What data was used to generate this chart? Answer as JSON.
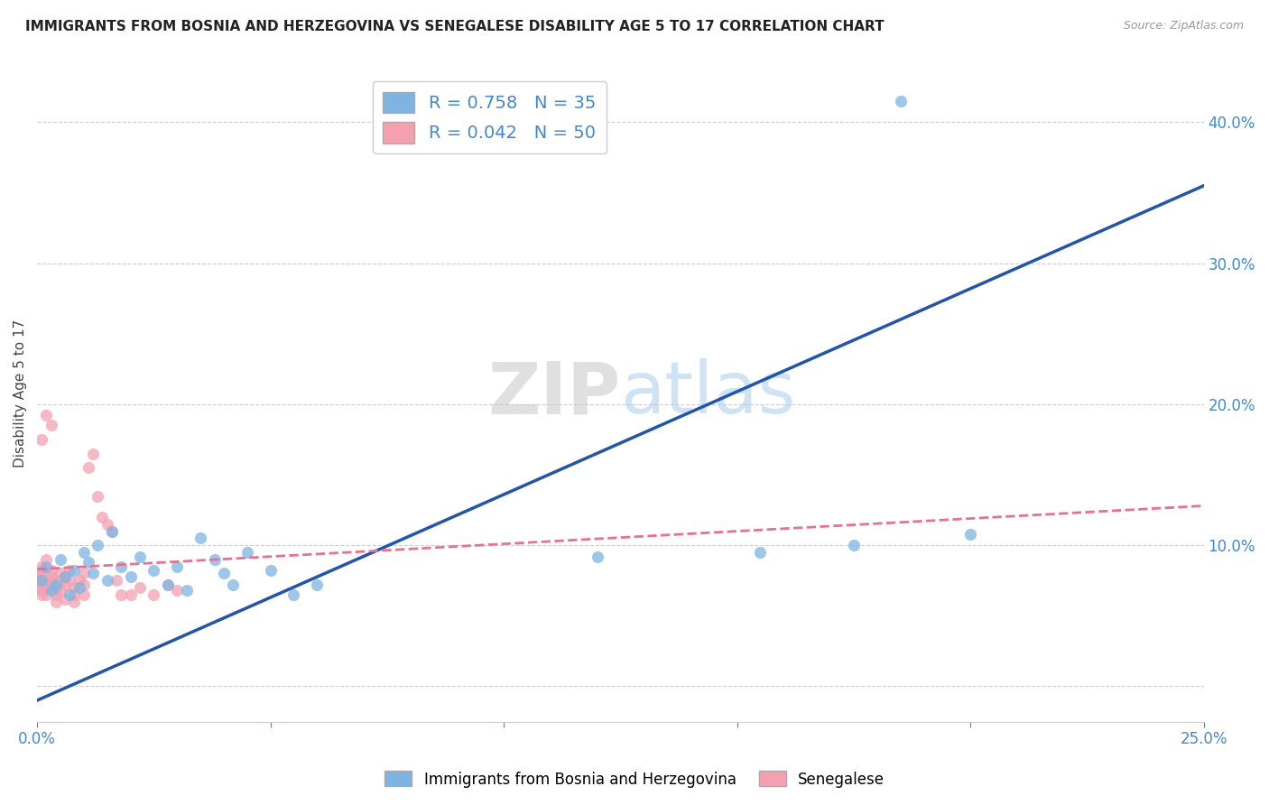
{
  "title": "IMMIGRANTS FROM BOSNIA AND HERZEGOVINA VS SENEGALESE DISABILITY AGE 5 TO 17 CORRELATION CHART",
  "source": "Source: ZipAtlas.com",
  "ylabel": "Disability Age 5 to 17",
  "xlim": [
    0.0,
    0.25
  ],
  "ylim": [
    -0.025,
    0.44
  ],
  "yticks": [
    0.0,
    0.1,
    0.2,
    0.3,
    0.4
  ],
  "xticks": [
    0.0,
    0.05,
    0.1,
    0.15,
    0.2,
    0.25
  ],
  "blue_R": 0.758,
  "blue_N": 35,
  "pink_R": 0.042,
  "pink_N": 50,
  "blue_color": "#7EB4E2",
  "pink_color": "#F4A0B0",
  "blue_line_color": "#2255AA",
  "pink_line_color": "#E87090",
  "background_color": "#FFFFFF",
  "blue_x": [
    0.001,
    0.002,
    0.003,
    0.004,
    0.005,
    0.006,
    0.007,
    0.008,
    0.009,
    0.01,
    0.011,
    0.012,
    0.013,
    0.015,
    0.016,
    0.018,
    0.02,
    0.022,
    0.025,
    0.028,
    0.03,
    0.032,
    0.035,
    0.038,
    0.04,
    0.042,
    0.045,
    0.05,
    0.055,
    0.06,
    0.12,
    0.155,
    0.175,
    0.2,
    0.185
  ],
  "blue_y": [
    0.075,
    0.085,
    0.068,
    0.072,
    0.09,
    0.078,
    0.065,
    0.082,
    0.07,
    0.095,
    0.088,
    0.08,
    0.1,
    0.075,
    0.11,
    0.085,
    0.078,
    0.092,
    0.082,
    0.072,
    0.085,
    0.068,
    0.105,
    0.09,
    0.08,
    0.072,
    0.095,
    0.082,
    0.065,
    0.072,
    0.092,
    0.095,
    0.1,
    0.108,
    0.415
  ],
  "pink_x": [
    0.0,
    0.0,
    0.0,
    0.001,
    0.001,
    0.001,
    0.001,
    0.001,
    0.001,
    0.002,
    0.002,
    0.002,
    0.002,
    0.003,
    0.003,
    0.003,
    0.004,
    0.004,
    0.005,
    0.005,
    0.005,
    0.006,
    0.006,
    0.007,
    0.007,
    0.008,
    0.008,
    0.009,
    0.01,
    0.01,
    0.011,
    0.012,
    0.013,
    0.014,
    0.015,
    0.016,
    0.017,
    0.018,
    0.02,
    0.022,
    0.025,
    0.028,
    0.03,
    0.003,
    0.002,
    0.001,
    0.004,
    0.006,
    0.008,
    0.01
  ],
  "pink_y": [
    0.08,
    0.075,
    0.07,
    0.082,
    0.078,
    0.072,
    0.065,
    0.068,
    0.085,
    0.09,
    0.075,
    0.07,
    0.065,
    0.078,
    0.082,
    0.075,
    0.07,
    0.065,
    0.08,
    0.075,
    0.068,
    0.072,
    0.078,
    0.075,
    0.082,
    0.07,
    0.065,
    0.075,
    0.08,
    0.072,
    0.155,
    0.165,
    0.135,
    0.12,
    0.115,
    0.11,
    0.075,
    0.065,
    0.065,
    0.07,
    0.065,
    0.072,
    0.068,
    0.185,
    0.192,
    0.175,
    0.06,
    0.062,
    0.06,
    0.065
  ],
  "blue_line_x": [
    0.0,
    0.25
  ],
  "blue_line_y": [
    -0.01,
    0.355
  ],
  "pink_line_x": [
    0.0,
    0.25
  ],
  "pink_line_y": [
    0.083,
    0.128
  ]
}
